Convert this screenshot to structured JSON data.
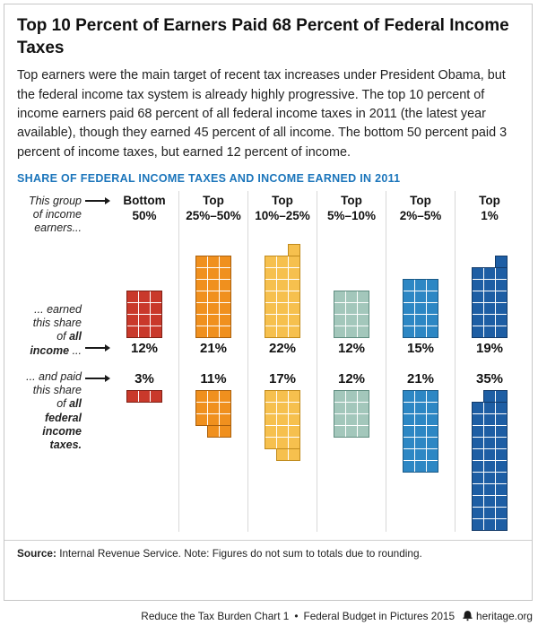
{
  "header": {
    "title": "Top 10 Percent of Earners Paid 68 Percent of Federal Income Taxes"
  },
  "intro": "Top earners were the main target of recent tax increases under President Obama, but the federal income tax system is already highly progressive. The top 10 percent of income earners paid 68 percent of all federal income taxes in 2011 (the latest year available), though they earned 45 percent of all income. The bottom 50 percent paid 3 percent of income taxes, but earned 12 percent of income.",
  "chart_caption": "SHARE OF FEDERAL INCOME TAXES AND INCOME EARNED IN 2011",
  "labels": {
    "group_note": "This group of income earners...",
    "earned_prefix": "... earned this share of ",
    "earned_bold": "all income",
    "earned_suffix": " ...",
    "paid_prefix": "... and paid this share of ",
    "paid_bold": "all federal income taxes."
  },
  "chart_data": {
    "type": "waffle",
    "title": "SHARE OF FEDERAL INCOME TAXES AND INCOME EARNED IN 2011",
    "categories": [
      "Bottom 50%",
      "Top 25%–50%",
      "Top 10%–25%",
      "Top 5%–10%",
      "Top 2%–5%",
      "Top 1%"
    ],
    "category_lines": [
      [
        "Bottom",
        "50%"
      ],
      [
        "Top",
        "25%–50%"
      ],
      [
        "Top",
        "10%–25%"
      ],
      [
        "Top",
        "5%–10%"
      ],
      [
        "Top",
        "2%–5%"
      ],
      [
        "Top",
        "1%"
      ]
    ],
    "series": [
      {
        "name": "Share of all income earned",
        "values": [
          12,
          21,
          22,
          12,
          15,
          19
        ],
        "value_labels": [
          "12%",
          "21%",
          "22%",
          "12%",
          "15%",
          "19%"
        ],
        "partial_row": [
          "none",
          "none",
          "top",
          "none",
          "none",
          "top"
        ]
      },
      {
        "name": "Share of all federal income taxes paid",
        "values": [
          3,
          11,
          17,
          12,
          21,
          35
        ],
        "value_labels": [
          "3%",
          "11%",
          "17%",
          "12%",
          "21%",
          "35%"
        ],
        "partial_row": [
          "none",
          "bottom",
          "bottom",
          "none",
          "none",
          "top"
        ]
      }
    ],
    "colors": [
      {
        "fill": "#c9392b",
        "edge": "#7e2015"
      },
      {
        "fill": "#f0901e",
        "edge": "#a85f0d"
      },
      {
        "fill": "#f6c04e",
        "edge": "#c08a1c"
      },
      {
        "fill": "#a3c7bb",
        "edge": "#5f8c7f"
      },
      {
        "fill": "#2d87c4",
        "edge": "#1b5a87"
      },
      {
        "fill": "#1e5ea4",
        "edge": "#123a69"
      }
    ],
    "layout": {
      "block_columns": 3,
      "income_blocks_align": "bottom",
      "tax_blocks_align": "top",
      "square_represents": "1 percent"
    }
  },
  "source": {
    "label": "Source:",
    "text": " Internal Revenue Service. Note: Figures do not sum to totals due to rounding."
  },
  "footer": {
    "left": "Reduce the Tax Burden Chart 1",
    "sep": "•",
    "middle": "Federal Budget in Pictures 2015",
    "site": "heritage.org"
  }
}
